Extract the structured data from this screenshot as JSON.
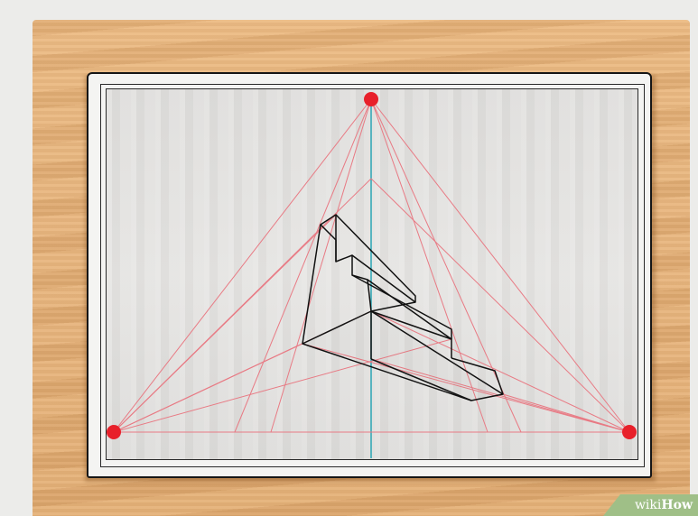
{
  "scene": {
    "description_free": true,
    "vanishing_point_color": "#e8202a",
    "guide_line_color": "#e87a84",
    "horizon_line_color": "#2aa5b4",
    "object_line_color": "#111111"
  },
  "watermark": {
    "prefix": "wiki",
    "suffix": "How"
  }
}
